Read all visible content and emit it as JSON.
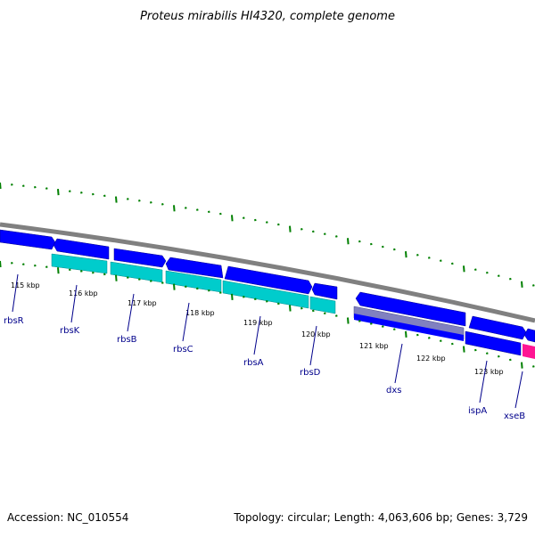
{
  "title": "Proteus mirabilis HI4320, complete genome",
  "footer": {
    "accession": "Accession: NC_010554",
    "summary": "Topology: circular; Length: 4,063,606 bp; Genes: 3,729"
  },
  "colors": {
    "backbone": "#808080",
    "forward_cds": "#0000ff",
    "reverse_cds": "#0000ff",
    "rrna_like": "#00cccc",
    "highlight": "#8080c0",
    "pink": "#ff1493",
    "tick": "#008000",
    "label": "#00008b"
  },
  "kbp_ticks": [
    {
      "label": "115 kbp"
    },
    {
      "label": "116 kbp"
    },
    {
      "label": "117 kbp"
    },
    {
      "label": "118 kbp"
    },
    {
      "label": "119 kbp"
    },
    {
      "label": "120 kbp"
    },
    {
      "label": "121 kbp"
    },
    {
      "label": "122 kbp"
    },
    {
      "label": "123 kbp"
    }
  ],
  "genes": [
    {
      "name": "rbsR"
    },
    {
      "name": "rbsK"
    },
    {
      "name": "rbsB"
    },
    {
      "name": "rbsC"
    },
    {
      "name": "rbsA"
    },
    {
      "name": "rbsD"
    },
    {
      "name": "dxs"
    },
    {
      "name": "ispA"
    },
    {
      "name": "xseB"
    }
  ]
}
